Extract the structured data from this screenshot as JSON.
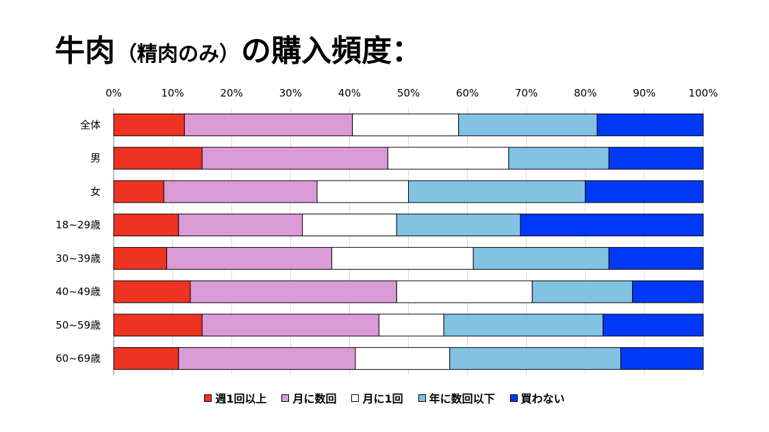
{
  "title": {
    "main": "牛肉",
    "paren": "（精肉のみ）",
    "rest": "の購入頻度："
  },
  "chart_data": {
    "type": "bar",
    "orientation": "horizontal",
    "stacked": true,
    "percent_stacked": true,
    "categories": [
      "全体",
      "男",
      "女",
      "18~29歳",
      "30~39歳",
      "40~49歳",
      "50~59歳",
      "60~69歳"
    ],
    "x_tick_labels": [
      "0%",
      "10%",
      "20%",
      "30%",
      "40%",
      "50%",
      "60%",
      "70%",
      "80%",
      "90%",
      "100%"
    ],
    "xlim": [
      0,
      100
    ],
    "grid": true,
    "legend_position": "bottom",
    "series": [
      {
        "name": "週1回以上",
        "color": "#EE3322",
        "values": [
          12,
          15,
          8.5,
          11,
          9,
          13,
          15,
          11
        ]
      },
      {
        "name": "月に数回",
        "color": "#DA9BD6",
        "values": [
          28.5,
          31.5,
          26,
          21,
          28,
          35,
          30,
          30
        ]
      },
      {
        "name": "月に1回",
        "color": "#FFFFFF",
        "values": [
          18,
          20.5,
          15.5,
          16,
          24,
          23,
          11,
          16
        ]
      },
      {
        "name": "年に数回以下",
        "color": "#82C2E3",
        "values": [
          23.5,
          17,
          30,
          21,
          23,
          17,
          27,
          29
        ]
      },
      {
        "name": "買わない",
        "color": "#0039F5",
        "values": [
          18,
          16,
          20,
          31,
          16,
          12,
          17,
          14
        ]
      }
    ]
  }
}
